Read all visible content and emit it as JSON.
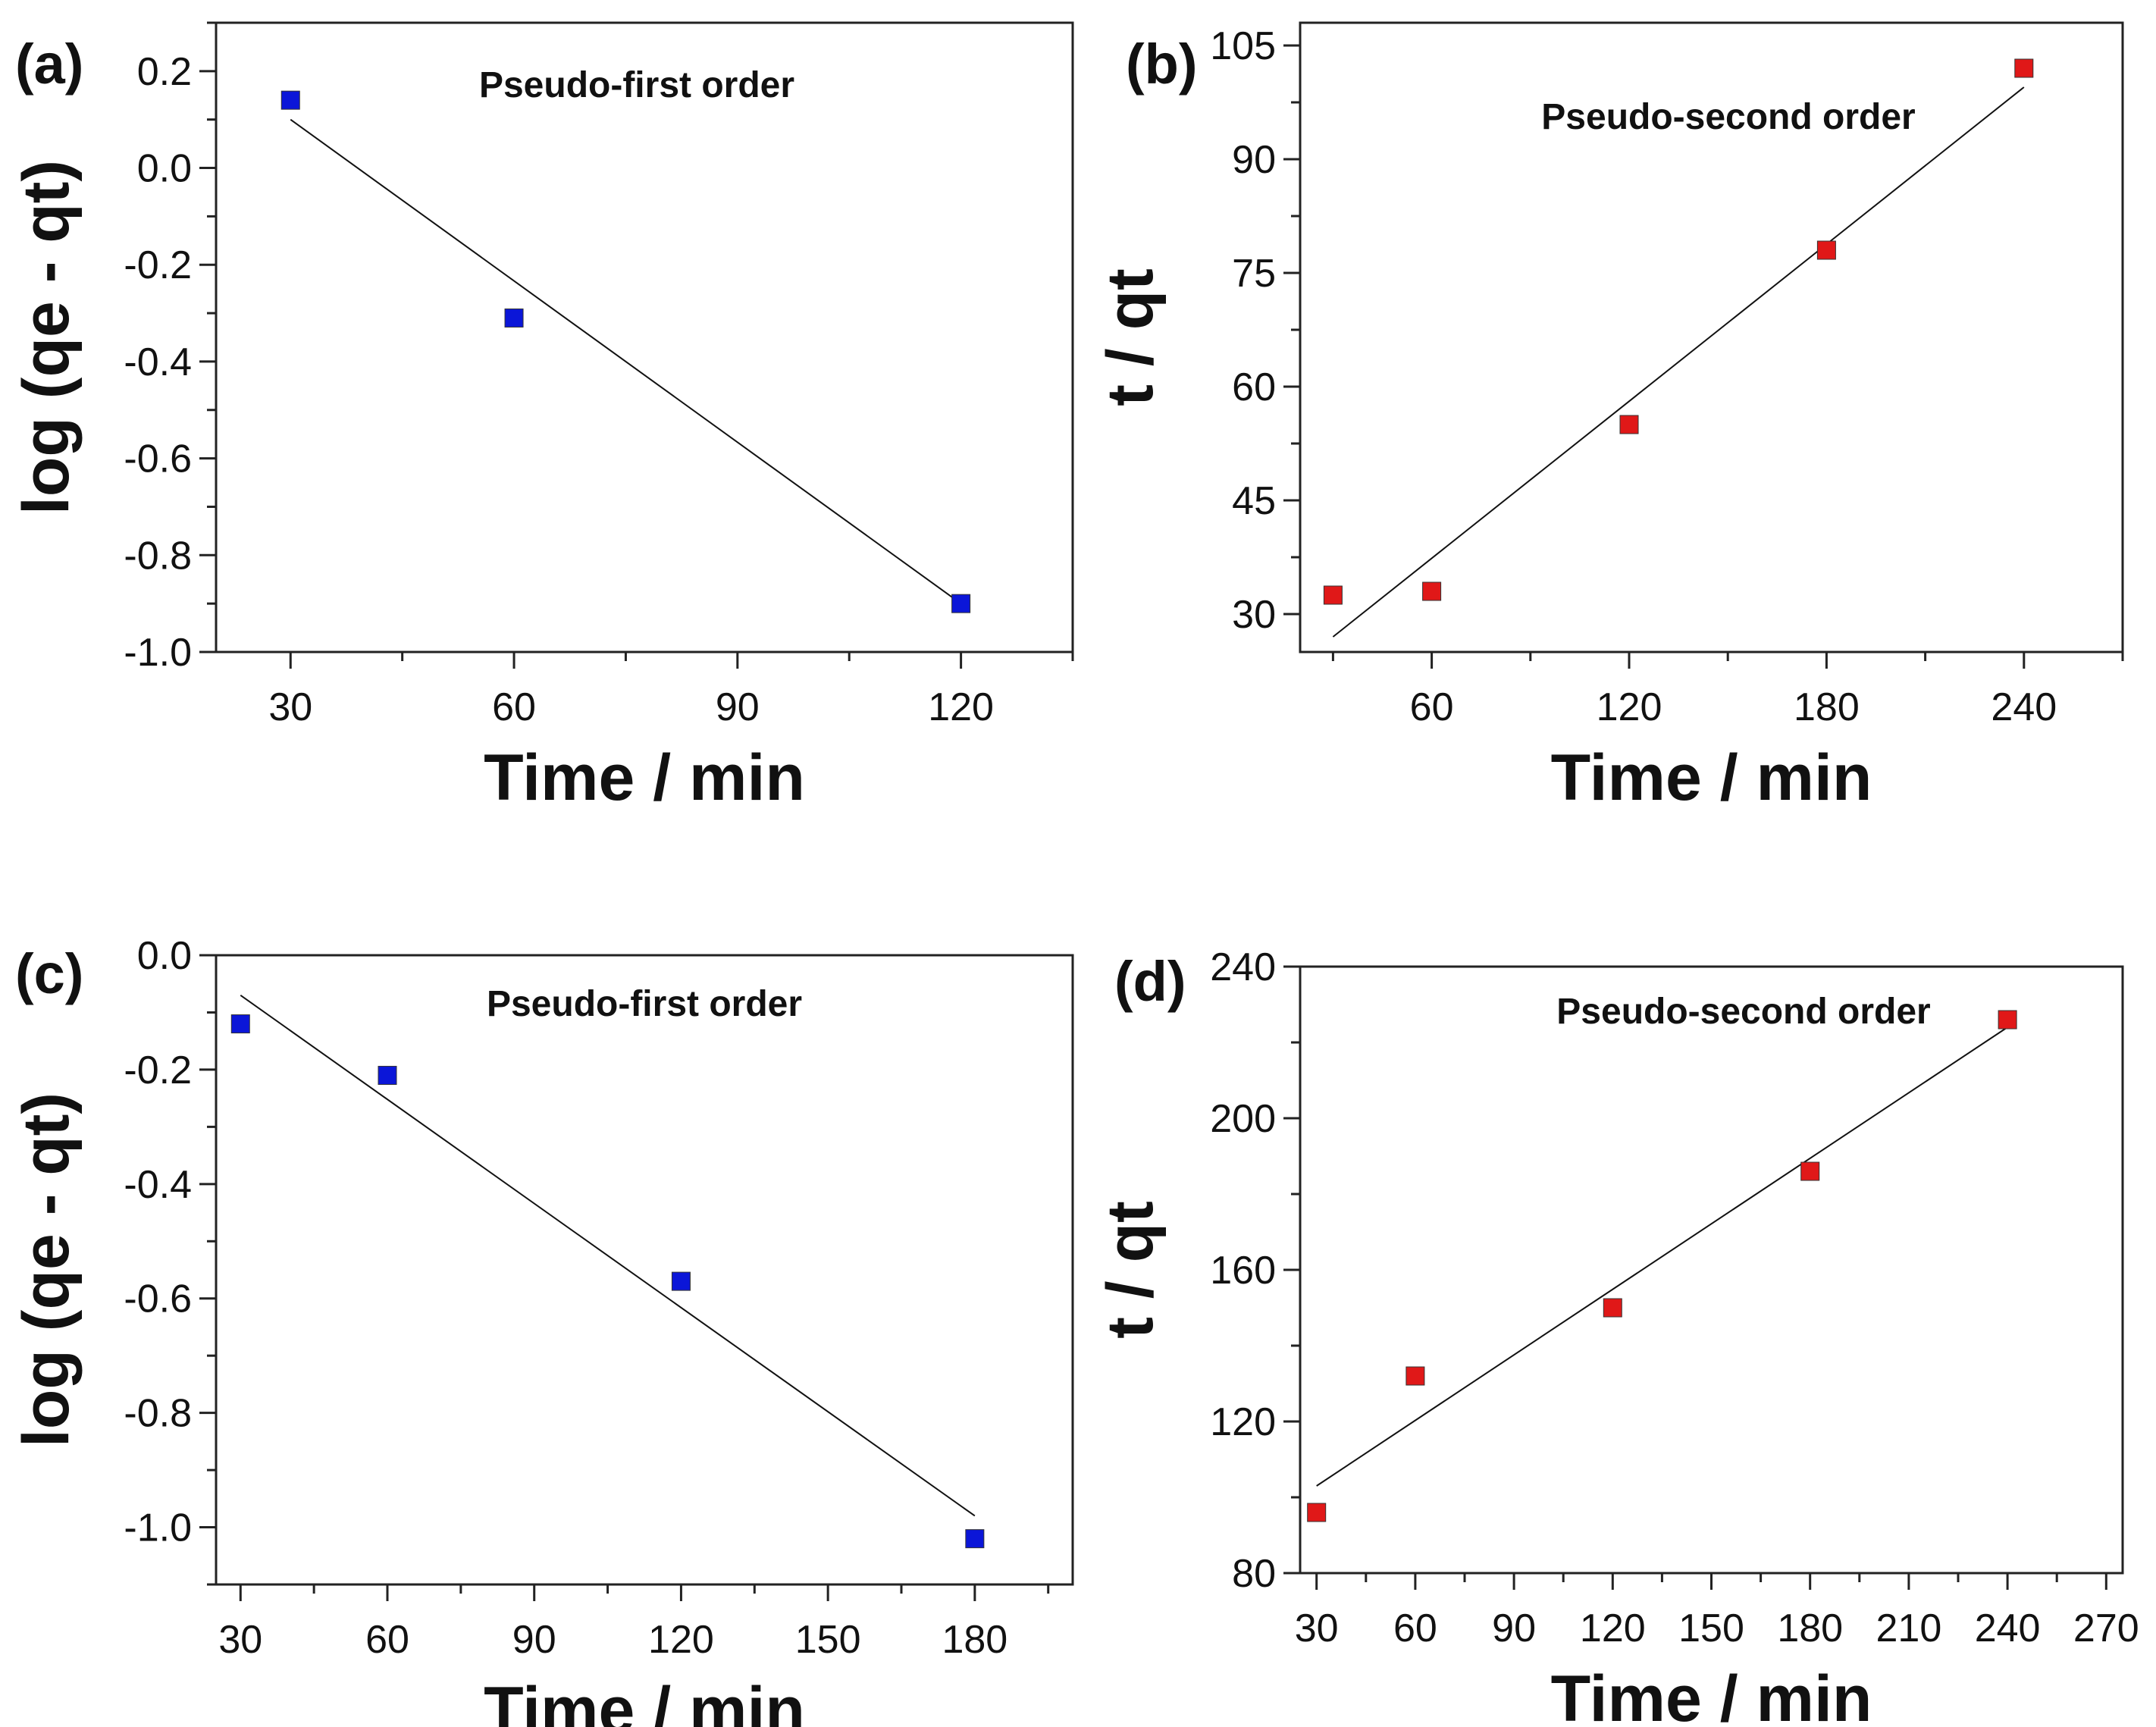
{
  "chart_data": [
    {
      "type": "scatter",
      "panel": "(a)",
      "title": "Pseudo-first order",
      "xlabel": "Time / min",
      "ylabel": "log (qe - qt)",
      "xlim": [
        20,
        135
      ],
      "ylim": [
        -1.0,
        0.3
      ],
      "xticks": [
        30,
        60,
        90,
        120
      ],
      "yticks": [
        -1.0,
        -0.8,
        -0.6,
        -0.4,
        -0.2,
        0.0,
        0.2
      ],
      "ytick_labels": [
        "-1.0",
        "-0.8",
        "-0.6",
        "-0.4",
        "-0.2",
        "0.0",
        "0.2"
      ],
      "marker_color": "#0b16d8",
      "series": [
        {
          "name": "data",
          "x": [
            30,
            60,
            120
          ],
          "y": [
            0.14,
            -0.31,
            -0.9
          ]
        }
      ],
      "fit_line": {
        "x": [
          30,
          120
        ],
        "y": [
          0.1,
          -0.9
        ]
      }
    },
    {
      "type": "scatter",
      "panel": "(b)",
      "title": "Pseudo-second order",
      "xlabel": "Time / min",
      "ylabel": "t / qt",
      "xlim": [
        20,
        270
      ],
      "ylim": [
        25,
        108
      ],
      "xticks": [
        60,
        120,
        180,
        240
      ],
      "yticks": [
        30,
        45,
        60,
        75,
        90,
        105
      ],
      "ytick_labels": [
        "30",
        "45",
        "60",
        "75",
        "90",
        "105"
      ],
      "marker_color": "#e01818",
      "series": [
        {
          "name": "data",
          "x": [
            30,
            60,
            120,
            180,
            240
          ],
          "y": [
            32.5,
            33,
            55,
            78,
            102
          ]
        }
      ],
      "fit_line": {
        "x": [
          30,
          240
        ],
        "y": [
          27,
          99.5
        ]
      }
    },
    {
      "type": "scatter",
      "panel": "(c)",
      "title": "Pseudo-first order",
      "xlabel": "Time / min",
      "ylabel": "log (qe - qt)",
      "xlim": [
        25,
        200
      ],
      "ylim": [
        -1.1,
        0.0
      ],
      "xticks": [
        30,
        60,
        90,
        120,
        150,
        180
      ],
      "yticks": [
        -1.0,
        -0.8,
        -0.6,
        -0.4,
        -0.2,
        0.0
      ],
      "ytick_labels": [
        "-1.0",
        "-0.8",
        "-0.6",
        "-0.4",
        "-0.2",
        "0.0"
      ],
      "marker_color": "#0b16d8",
      "series": [
        {
          "name": "data",
          "x": [
            30,
            60,
            120,
            180
          ],
          "y": [
            -0.12,
            -0.21,
            -0.57,
            -1.02
          ]
        }
      ],
      "fit_line": {
        "x": [
          30,
          180
        ],
        "y": [
          -0.07,
          -0.98
        ]
      }
    },
    {
      "type": "scatter",
      "panel": "(d)",
      "title": "Pseudo-second order",
      "xlabel": "Time / min",
      "ylabel": "t / qt",
      "xlim": [
        25,
        275
      ],
      "ylim": [
        80,
        240
      ],
      "xticks": [
        30,
        60,
        90,
        120,
        150,
        180,
        210,
        240,
        270
      ],
      "yticks": [
        80,
        120,
        160,
        200,
        240
      ],
      "ytick_labels": [
        "80",
        "120",
        "160",
        "200",
        "240"
      ],
      "marker_color": "#e01818",
      "series": [
        {
          "name": "data",
          "x": [
            30,
            60,
            120,
            180,
            240
          ],
          "y": [
            96,
            132,
            150,
            186,
            226
          ]
        }
      ],
      "fit_line": {
        "x": [
          30,
          240
        ],
        "y": [
          103,
          224
        ]
      }
    }
  ]
}
